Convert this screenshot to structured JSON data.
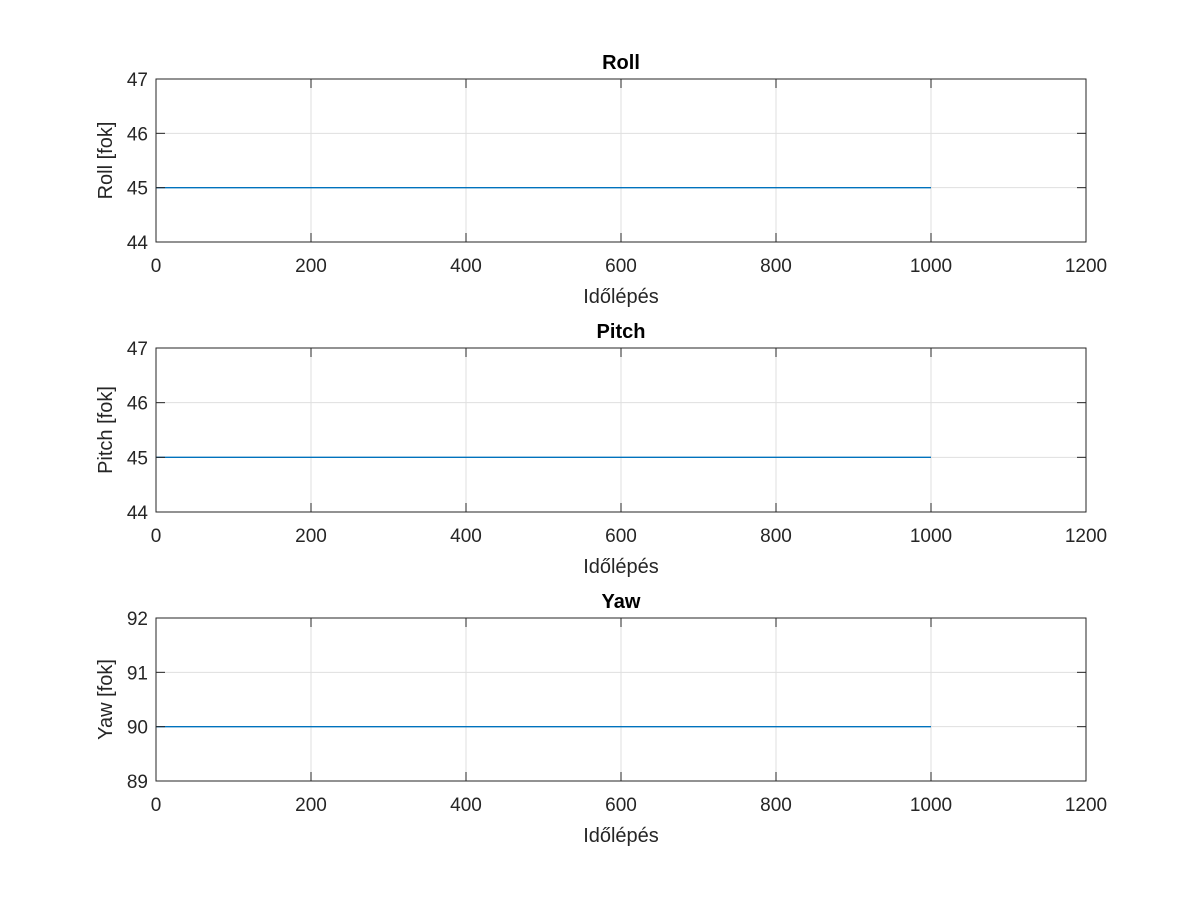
{
  "colors": {
    "series": "#0072bd"
  },
  "chart_data": [
    {
      "type": "line",
      "title": "Roll",
      "xlabel": "Időlépés",
      "ylabel": "Roll [fok]",
      "xlim": [
        0,
        1200
      ],
      "ylim": [
        44,
        47
      ],
      "xticks": [
        0,
        200,
        400,
        600,
        800,
        1000,
        1200
      ],
      "yticks": [
        44,
        45,
        46,
        47
      ],
      "grid": true,
      "series": [
        {
          "x": [
            0,
            1000
          ],
          "y": [
            45,
            45
          ]
        }
      ]
    },
    {
      "type": "line",
      "title": "Pitch",
      "xlabel": "Időlépés",
      "ylabel": "Pitch [fok]",
      "xlim": [
        0,
        1200
      ],
      "ylim": [
        44,
        47
      ],
      "xticks": [
        0,
        200,
        400,
        600,
        800,
        1000,
        1200
      ],
      "yticks": [
        44,
        45,
        46,
        47
      ],
      "grid": true,
      "series": [
        {
          "x": [
            0,
            1000
          ],
          "y": [
            45,
            45
          ]
        }
      ]
    },
    {
      "type": "line",
      "title": "Yaw",
      "xlabel": "Időlépés",
      "ylabel": "Yaw [fok]",
      "xlim": [
        0,
        1200
      ],
      "ylim": [
        89,
        92
      ],
      "xticks": [
        0,
        200,
        400,
        600,
        800,
        1000,
        1200
      ],
      "yticks": [
        89,
        90,
        91,
        92
      ],
      "grid": true,
      "series": [
        {
          "x": [
            0,
            1000
          ],
          "y": [
            90,
            90
          ]
        }
      ]
    }
  ]
}
